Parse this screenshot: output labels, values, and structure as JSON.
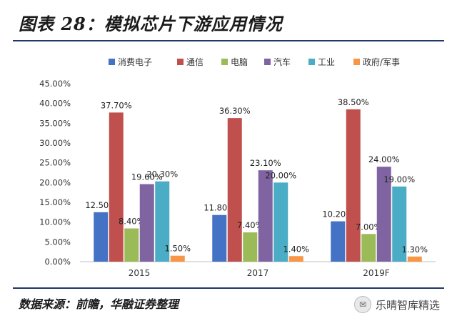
{
  "title": "图表 28：模拟芯片下游应用情况",
  "source": "数据来源：前瞻，华融证券整理",
  "watermark": {
    "text": "乐晴智库精选",
    "icon": "wechat-icon"
  },
  "chart_data": {
    "type": "bar",
    "categories": [
      "2015",
      "2017",
      "2019F"
    ],
    "series": [
      {
        "name": "消费电子",
        "color": "#4472c4",
        "values": [
          12.5,
          11.8,
          10.2
        ],
        "labels": [
          "12.50%",
          "11.80%",
          "10.20%"
        ]
      },
      {
        "name": "通信",
        "color": "#c0504d",
        "values": [
          37.7,
          36.3,
          38.5
        ],
        "labels": [
          "37.70%",
          "36.30%",
          "38.50%"
        ]
      },
      {
        "name": "电脑",
        "color": "#9bbb59",
        "values": [
          8.4,
          7.4,
          7.0
        ],
        "labels": [
          "8.40%",
          "7.40%",
          "7.00%"
        ]
      },
      {
        "name": "汽车",
        "color": "#8064a2",
        "values": [
          19.6,
          23.1,
          24.0
        ],
        "labels": [
          "19.60%",
          "23.10%",
          "24.00%"
        ]
      },
      {
        "name": "工业",
        "color": "#4bacc6",
        "values": [
          20.3,
          20.0,
          19.0
        ],
        "labels": [
          "20.30%",
          "20.00%",
          "19.00%"
        ]
      },
      {
        "name": "政府/军事",
        "color": "#f79646",
        "values": [
          1.5,
          1.4,
          1.3
        ],
        "labels": [
          "1.50%",
          "1.40%",
          "1.30%"
        ]
      }
    ],
    "y_ticks": [
      "0.00%",
      "5.00%",
      "10.00%",
      "15.00%",
      "20.00%",
      "25.00%",
      "30.00%",
      "35.00%",
      "40.00%",
      "45.00%"
    ],
    "ylim": [
      0,
      45
    ],
    "legend_position": "top",
    "grid": false
  }
}
